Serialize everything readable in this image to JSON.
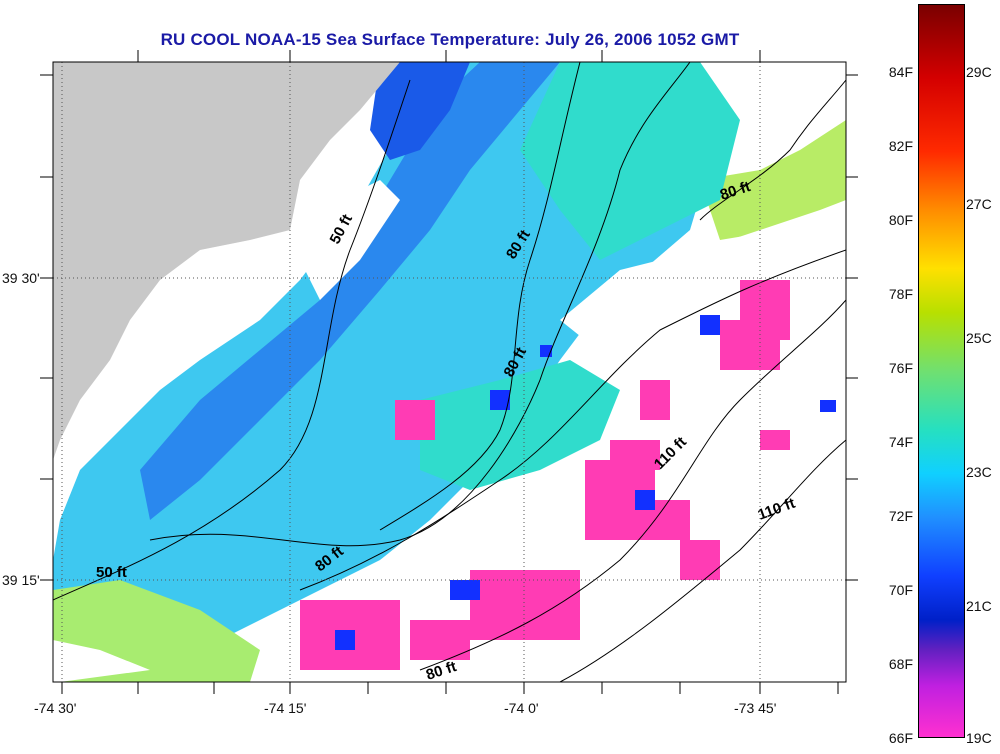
{
  "title": "RU COOL  NOAA-15  Sea Surface Temperature:  July 26, 2006 1052 GMT",
  "axes": {
    "x_ticks": [
      "-74 30'",
      "-74 15'",
      "-74 0'",
      "-73 45'"
    ],
    "y_ticks": [
      "39 30'",
      "39 15'"
    ]
  },
  "contours": [
    {
      "label": "50 ft"
    },
    {
      "label": "50 ft"
    },
    {
      "label": "80 ft"
    },
    {
      "label": "80 ft"
    },
    {
      "label": "80 ft"
    },
    {
      "label": "80 ft"
    },
    {
      "label": "80 ft"
    },
    {
      "label": "110 ft"
    },
    {
      "label": "110 ft"
    }
  ],
  "colorbar": {
    "fahrenheit": [
      "84F",
      "82F",
      "80F",
      "78F",
      "76F",
      "74F",
      "72F",
      "70F",
      "68F",
      "66F"
    ],
    "celsius": [
      "29C",
      "27C",
      "25C",
      "23C",
      "21C",
      "19C"
    ]
  },
  "colors": {
    "title": "#1a1aa6",
    "land": "#c8c8c8",
    "cloud": "#ffffff",
    "cold": "#ff3cb4",
    "warm": "#a0e878"
  }
}
